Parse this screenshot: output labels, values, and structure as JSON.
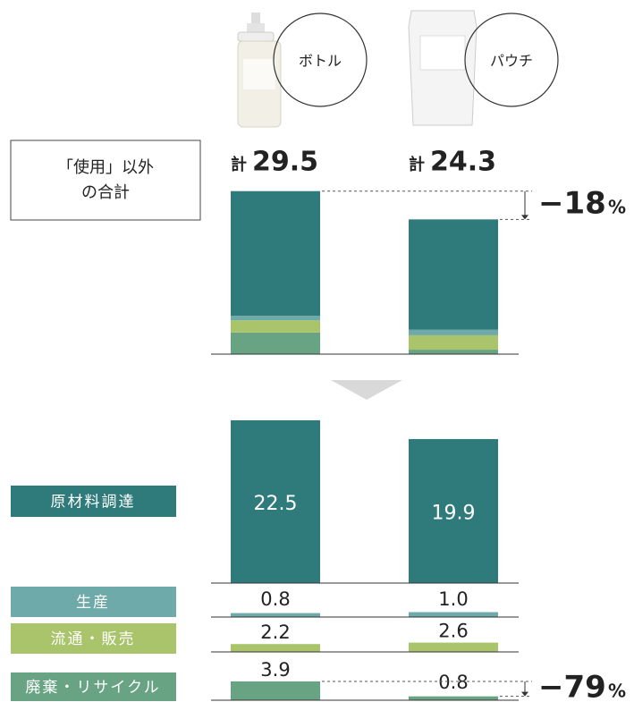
{
  "chart_data": {
    "type": "bar",
    "categories": [
      "ボトル",
      "パウチ"
    ],
    "total_prefix": "計",
    "totals": [
      29.5,
      24.3
    ],
    "summary_label": [
      "「使用」以外",
      "の合計"
    ],
    "series": [
      {
        "name": "原材料調達",
        "color": "#2f7b7b",
        "values": [
          22.5,
          19.9
        ],
        "value_labels": [
          "22.5",
          "19.9"
        ]
      },
      {
        "name": "生産",
        "color": "#6eaaa9",
        "values": [
          0.8,
          1.0
        ],
        "value_labels": [
          "0.8",
          "1.0"
        ]
      },
      {
        "name": "流通・販売",
        "color": "#a9c46b",
        "values": [
          2.2,
          2.6
        ],
        "value_labels": [
          "2.2",
          "2.6"
        ]
      },
      {
        "name": "廃棄・リサイクル",
        "color": "#68a383",
        "values": [
          3.9,
          0.8
        ],
        "value_labels": [
          "3.9",
          "0.8"
        ]
      }
    ],
    "annotations": {
      "total_change": "−18",
      "disposal_change": "−79",
      "unit": "%"
    }
  }
}
